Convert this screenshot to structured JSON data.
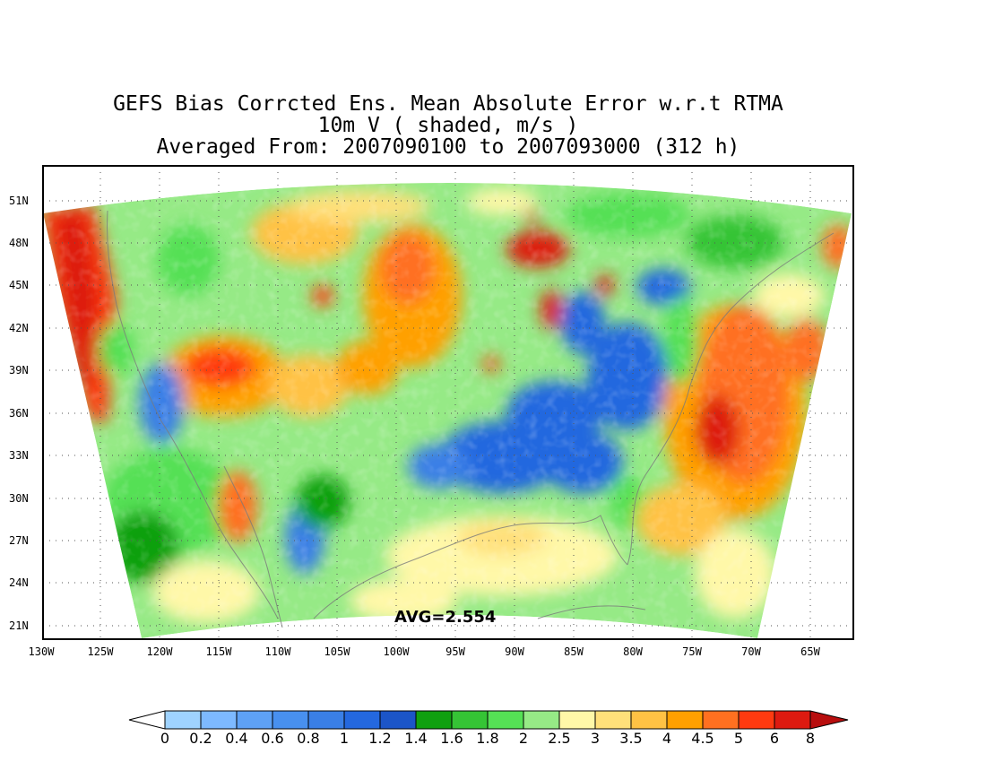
{
  "title": {
    "line1": "GEFS Bias Corrcted Ens. Mean Absolute Error w.r.t RTMA",
    "line2": "10m V ( shaded, m/s )",
    "line3": "Averaged From: 2007090100 to 2007093000 (312 h)"
  },
  "map": {
    "lat_labels": [
      "51N",
      "48N",
      "45N",
      "42N",
      "39N",
      "36N",
      "33N",
      "30N",
      "27N",
      "24N",
      "21N"
    ],
    "lon_labels": [
      "130W",
      "125W",
      "120W",
      "115W",
      "110W",
      "105W",
      "100W",
      "95W",
      "90W",
      "85W",
      "80W",
      "75W",
      "70W",
      "65W"
    ],
    "avg_label": "AVG=2.554"
  },
  "colorbar": {
    "labels": [
      "0",
      "0.2",
      "0.4",
      "0.6",
      "0.8",
      "1",
      "1.2",
      "1.4",
      "1.6",
      "1.8",
      "2",
      "2.5",
      "3",
      "3.5",
      "4",
      "4.5",
      "5",
      "6",
      "8"
    ],
    "colors": [
      "#9fd3ff",
      "#7db9ff",
      "#5ea1f5",
      "#4890ef",
      "#3a7fe6",
      "#2468df",
      "#1c55c8",
      "#10a010",
      "#35c435",
      "#55e055",
      "#96ea86",
      "#fff8a8",
      "#ffe07a",
      "#ffc244",
      "#ffa000",
      "#ff7020",
      "#ff3a10",
      "#dd1a10",
      "#b80e0e"
    ]
  },
  "chart_data": {
    "type": "heatmap",
    "title": "GEFS Bias Corrcted Ens. Mean Absolute Error w.r.t RTMA",
    "subtitle": "10m V ( shaded, m/s )",
    "period": "Averaged From: 2007090100 to 2007093000 (312 h)",
    "x_range": [
      "130W",
      "62W"
    ],
    "y_range": [
      "19.5N",
      "52N"
    ],
    "average": 2.554,
    "legend": "bottom colorbar, 0 to 8 m/s",
    "grid": true
  }
}
